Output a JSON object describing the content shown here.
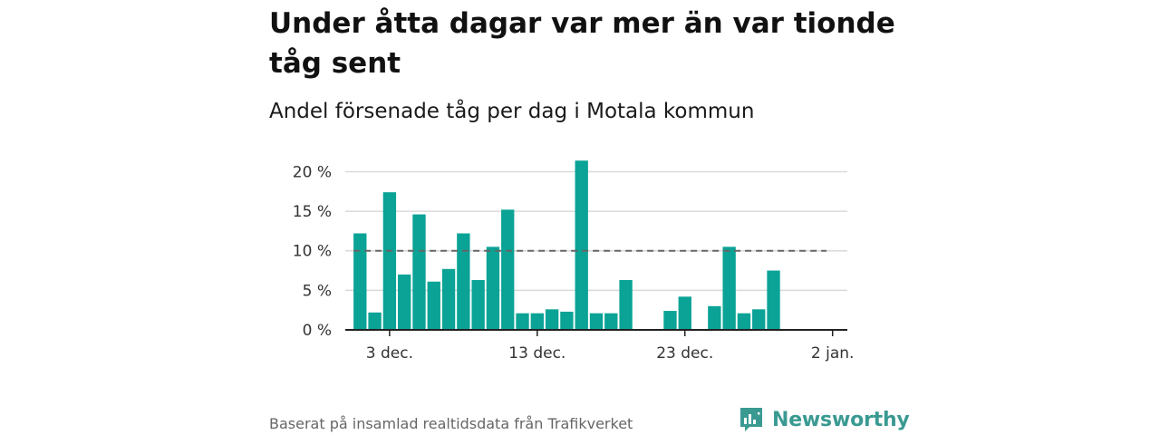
{
  "title": "Under åtta dagar var mer än var tionde tåg sent",
  "subtitle": "Andel försenade tåg per dag i Motala kommun",
  "footer": {
    "source": "Baserat på insamlad realtidsdata från Trafikverket"
  },
  "brand": {
    "name": "Newsworthy",
    "icon": "newsworthy-logo-icon",
    "color": "#3a9a92"
  },
  "chart_data": {
    "type": "bar",
    "title": "Under åtta dagar var mer än var tionde tåg sent",
    "subtitle": "Andel försenade tåg per dag i Motala kommun",
    "x_axis": {
      "type": "date",
      "range": [
        "2022-11-30",
        "2023-01-03"
      ],
      "ticks": [
        {
          "date": "2022-12-03",
          "label": "3 dec."
        },
        {
          "date": "2022-12-13",
          "label": "13 dec."
        },
        {
          "date": "2022-12-23",
          "label": "23 dec."
        },
        {
          "date": "2023-01-02",
          "label": "2 jan."
        }
      ]
    },
    "y_axis": {
      "unit": "%",
      "range": [
        0,
        22
      ],
      "ticks": [
        {
          "value": 0,
          "label": "0 %"
        },
        {
          "value": 5,
          "label": "5 %"
        },
        {
          "value": 10,
          "label": "10 %"
        },
        {
          "value": 15,
          "label": "15 %"
        },
        {
          "value": 20,
          "label": "20 %"
        }
      ]
    },
    "grid": true,
    "bar_color": "#0aa396",
    "reference_line": {
      "value": 10,
      "style": "dashed",
      "color": "#666666"
    },
    "series": [
      {
        "points": [
          {
            "date": "2022-12-01",
            "value": 12.2
          },
          {
            "date": "2022-12-02",
            "value": 2.2
          },
          {
            "date": "2022-12-03",
            "value": 17.4
          },
          {
            "date": "2022-12-04",
            "value": 7.0
          },
          {
            "date": "2022-12-05",
            "value": 14.6
          },
          {
            "date": "2022-12-06",
            "value": 6.1
          },
          {
            "date": "2022-12-07",
            "value": 7.7
          },
          {
            "date": "2022-12-08",
            "value": 12.2
          },
          {
            "date": "2022-12-09",
            "value": 6.3
          },
          {
            "date": "2022-12-10",
            "value": 10.5
          },
          {
            "date": "2022-12-11",
            "value": 15.2
          },
          {
            "date": "2022-12-12",
            "value": 2.1
          },
          {
            "date": "2022-12-13",
            "value": 2.1
          },
          {
            "date": "2022-12-14",
            "value": 2.6
          },
          {
            "date": "2022-12-15",
            "value": 2.3
          },
          {
            "date": "2022-12-16",
            "value": 21.4
          },
          {
            "date": "2022-12-17",
            "value": 2.1
          },
          {
            "date": "2022-12-18",
            "value": 2.1
          },
          {
            "date": "2022-12-19",
            "value": 6.3
          },
          {
            "date": "2022-12-20",
            "value": 0
          },
          {
            "date": "2022-12-21",
            "value": 0
          },
          {
            "date": "2022-12-22",
            "value": 2.4
          },
          {
            "date": "2022-12-23",
            "value": 4.2
          },
          {
            "date": "2022-12-24",
            "value": 0
          },
          {
            "date": "2022-12-25",
            "value": 3.0
          },
          {
            "date": "2022-12-26",
            "value": 10.5
          },
          {
            "date": "2022-12-27",
            "value": 2.1
          },
          {
            "date": "2022-12-28",
            "value": 2.6
          },
          {
            "date": "2022-12-29",
            "value": 7.5
          }
        ]
      }
    ]
  }
}
